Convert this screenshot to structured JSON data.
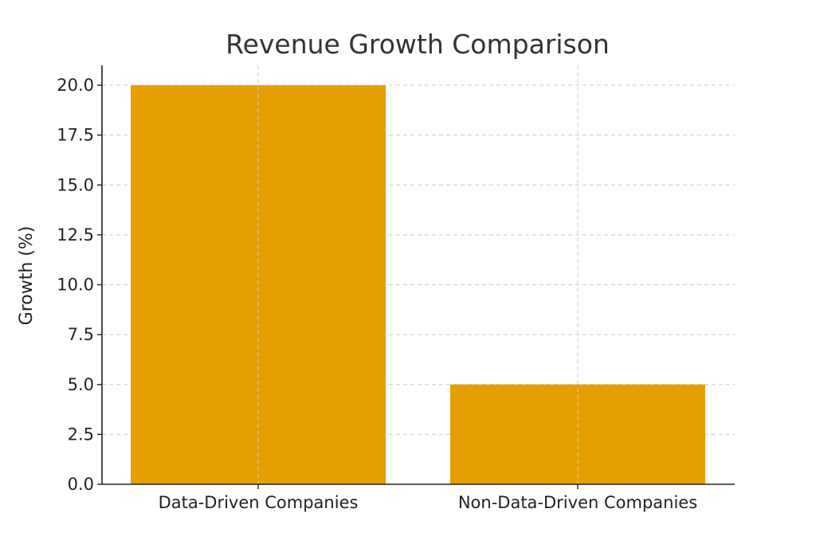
{
  "chart_data": {
    "type": "bar",
    "title": "Revenue Growth Comparison",
    "xlabel": "",
    "ylabel": "Growth (%)",
    "categories": [
      "Data-Driven Companies",
      "Non-Data-Driven Companies"
    ],
    "values": [
      20.0,
      5.0
    ],
    "ylim": [
      0,
      21
    ],
    "yticks": [
      "0.0",
      "2.5",
      "5.0",
      "7.5",
      "10.0",
      "12.5",
      "15.0",
      "17.5",
      "20.0"
    ],
    "bar_color": "#E69F00",
    "grid": true
  }
}
